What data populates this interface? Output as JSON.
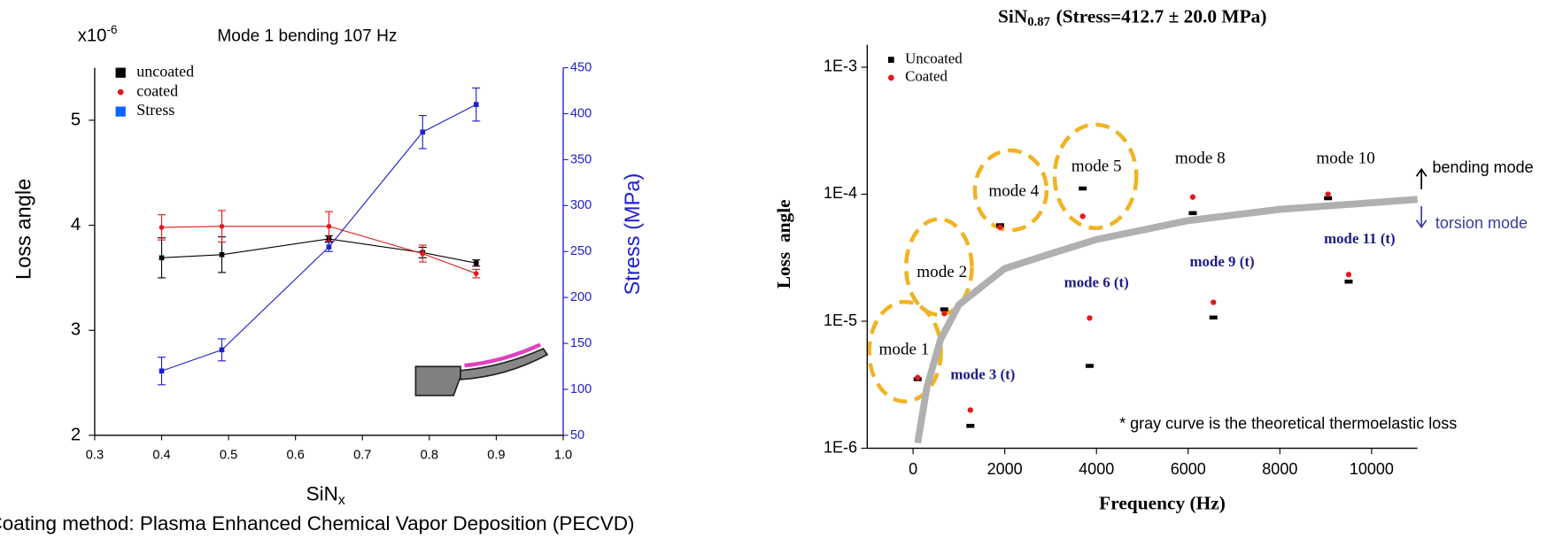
{
  "chart_data": [
    {
      "type": "line",
      "title": "Mode 1 bending 107 Hz",
      "y_multiplier": {
        "base": "x10",
        "exponent": "-6"
      },
      "xlabel": {
        "text": "SiN",
        "sub": "x"
      },
      "ylabel": "Loss angle",
      "y2label": "Stress (MPa)",
      "x": [
        0.4,
        0.49,
        0.65,
        0.79,
        0.87
      ],
      "xlim": [
        0.3,
        1.0
      ],
      "xticks": [
        0.3,
        0.4,
        0.5,
        0.6,
        0.7,
        0.8,
        0.9,
        {
          "value": 1.0,
          "label": "1.0"
        }
      ],
      "ylim": [
        2,
        5.5
      ],
      "yticks": [
        2,
        3,
        4,
        5
      ],
      "y2lim": [
        50,
        450
      ],
      "y2ticks": [
        50,
        100,
        150,
        200,
        250,
        300,
        350,
        400,
        450
      ],
      "legend": "upper left",
      "series": [
        {
          "name": "uncoated",
          "color": "#000000",
          "marker": "square",
          "values": [
            3.69,
            3.72,
            3.87,
            3.74,
            3.64
          ],
          "errors": [
            0.19,
            0.17,
            0.03,
            0.05,
            0.03
          ]
        },
        {
          "name": "coated",
          "color": "#e31a1c",
          "marker": "circle",
          "values": [
            3.98,
            3.99,
            3.99,
            3.73,
            3.54
          ],
          "errors": [
            0.12,
            0.15,
            0.14,
            0.08,
            0.04
          ]
        },
        {
          "name": "Stress",
          "color": "#1f1fd0",
          "marker": "square",
          "axis": "y2",
          "values": [
            120,
            143,
            255,
            380,
            410
          ],
          "errors": [
            15,
            12,
            5,
            18,
            18
          ]
        }
      ]
    },
    {
      "type": "scatter",
      "title": {
        "text": "SiN",
        "sub": "0.87",
        "rest": "(Stress=412.7 ± 20.0 MPa)"
      },
      "xlabel": "Frequency (Hz)",
      "ylabel": "Loss  angle",
      "log_y": true,
      "xlim": [
        -1000,
        11000
      ],
      "xticks": [
        0,
        2000,
        4000,
        6000,
        8000,
        10000
      ],
      "ylim": [
        1e-06,
        0.0015
      ],
      "yticks": [
        {
          "value": 1e-06,
          "label": "1E-6"
        },
        {
          "value": 1e-05,
          "label": "1E-5"
        },
        {
          "value": 0.0001,
          "label": "1E-4"
        },
        {
          "value": 0.001,
          "label": "1E-3"
        }
      ],
      "legend": "upper left",
      "series": [
        {
          "name": "Uncoated",
          "color": "#000000",
          "marker": "square",
          "x": [
            100,
            680,
            1250,
            1900,
            3700,
            3850,
            6100,
            6550,
            9050,
            9500
          ],
          "values": [
            3.5e-06,
            1.24e-05,
            1.5e-06,
            5.7e-05,
            0.000111,
            4.45e-06,
            7.1e-05,
            1.07e-05,
            9.3e-05,
            2.05e-05
          ]
        },
        {
          "name": "Coated",
          "color": "#e31a1c",
          "marker": "circle",
          "x": [
            100,
            680,
            1250,
            1900,
            3700,
            3850,
            6100,
            6550,
            9050,
            9500
          ],
          "values": [
            3.6e-06,
            1.15e-05,
            2e-06,
            5.5e-05,
            6.7e-05,
            1.06e-05,
            9.5e-05,
            1.41e-05,
            0.0001,
            2.33e-05
          ]
        }
      ],
      "curve": {
        "color": "#b0b0b0",
        "x": [
          100,
          300,
          600,
          1000,
          2000,
          3000,
          4000,
          6000,
          8000,
          11000
        ],
        "values": [
          1.1e-06,
          3e-06,
          7.2e-06,
          1.35e-05,
          2.6e-05,
          3.4e-05,
          4.4e-05,
          6.2e-05,
          7.6e-05,
          9.1e-05
        ]
      },
      "annotations": [
        "mode 1",
        "mode 2",
        "mode 3 (t)",
        "mode 4",
        "mode 5",
        "mode 6 (t)",
        "mode 8",
        "mode 9 (t)",
        "mode 10",
        "mode 11 (t)"
      ],
      "note": "* gray curve is the theoretical thermoelastic loss",
      "bending_label": "bending mode",
      "torsion_label": "torsion mode"
    }
  ],
  "caption": "Coating method: Plasma Enhanced Chemical Vapor Deposition (PECVD)"
}
